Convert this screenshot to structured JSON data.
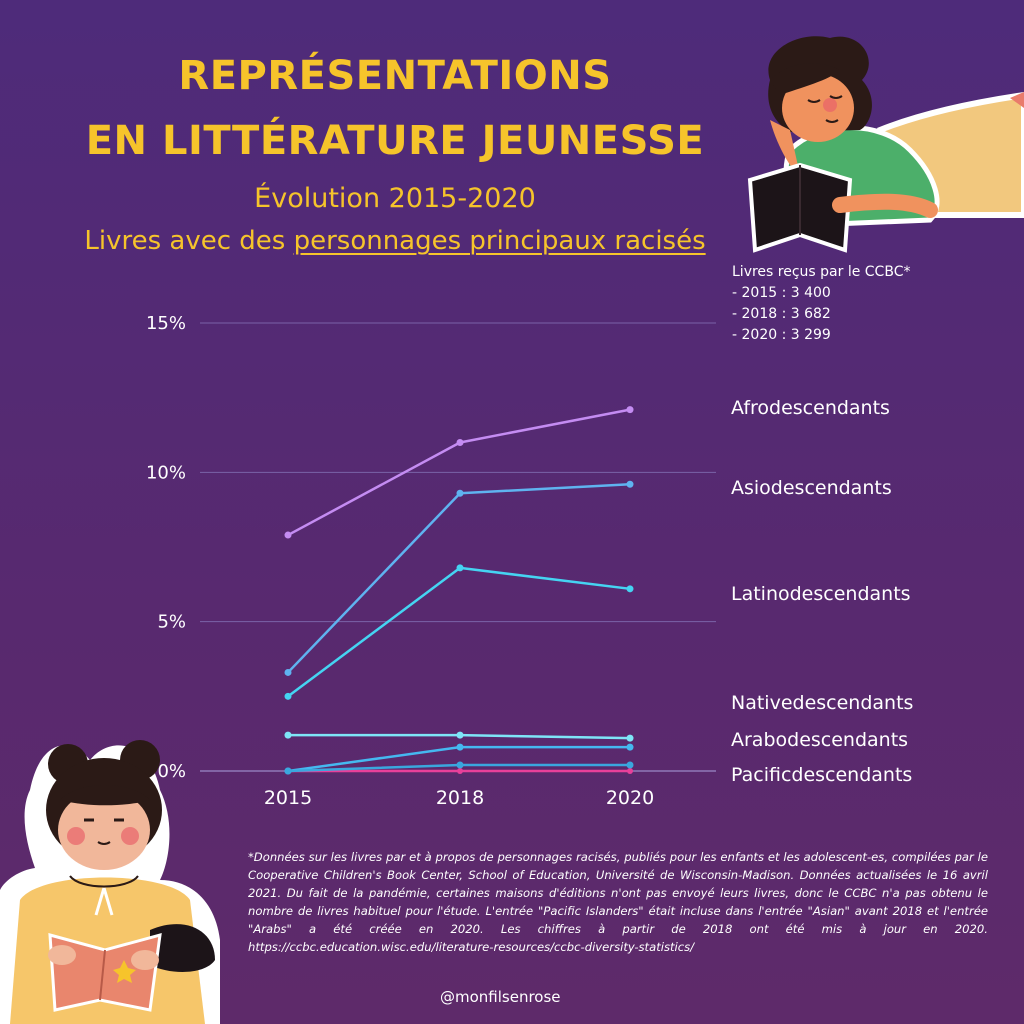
{
  "header": {
    "title_line1": "REPRÉSENTATIONS",
    "title_line2": "EN LITTÉRATURE JEUNESSE",
    "subtitle": "Évolution 2015-2020",
    "caption_prefix": "Livres avec des ",
    "caption_underlined": "personnages principaux racisés"
  },
  "books_received": {
    "title": "Livres reçus par le CCBC*",
    "items": [
      "- 2015 : 3 400",
      "- 2018 : 3 682",
      "- 2020 : 3 299"
    ]
  },
  "chart_data": {
    "type": "line",
    "x": [
      "2015",
      "2018",
      "2020"
    ],
    "ylim": [
      0,
      15
    ],
    "yticks": [
      0,
      5,
      10,
      15
    ],
    "ytick_labels": [
      "0%",
      "5%",
      "10%",
      "15%"
    ],
    "grid": true,
    "series": [
      {
        "name": "Afrodescendants",
        "values": [
          7.9,
          11.0,
          12.1
        ],
        "color": "#c48cf2"
      },
      {
        "name": "Asiodescendants",
        "values": [
          3.3,
          9.3,
          9.6
        ],
        "color": "#5fb3f0"
      },
      {
        "name": "Latinodescendants",
        "values": [
          2.5,
          6.8,
          6.1
        ],
        "color": "#45d4f2"
      },
      {
        "name": "Nativedescendants",
        "values": [
          1.2,
          1.2,
          1.1
        ],
        "color": "#7ee6f7"
      },
      {
        "name": "Arabodescendants",
        "values": [
          0.0,
          0.8,
          0.8
        ],
        "color": "#45b8f0"
      },
      {
        "name": "Pacificdescendants",
        "values": [
          0.0,
          0.2,
          0.2
        ],
        "color": "#3aa7de"
      }
    ],
    "baseline_color": "#e8409a"
  },
  "footnote": "*Données sur les livres par et à propos de personnages racisés, publiés pour les enfants et les adolescent-es, compilées par le  Cooperative Children's Book Center, School of Education, Université de Wisconsin-Madison. Données actualisées le 16 avril 2021. Du fait de la pandémie, certaines maisons d'éditions n'ont pas envoyé leurs livres, donc le CCBC n'a pas obtenu le nombre de livres habituel pour l'étude. L'entrée \"Pacific Islanders\" était incluse dans l'entrée \"Asian\" avant 2018 et l'entrée \"Arabs\" a été créée en 2020. Les chiffres à partir de 2018 ont été mis à jour en 2020. https://ccbc.education.wisc.edu/literature-resources/ccbc-diversity-statistics/",
  "handle": "@monfilsenrose"
}
